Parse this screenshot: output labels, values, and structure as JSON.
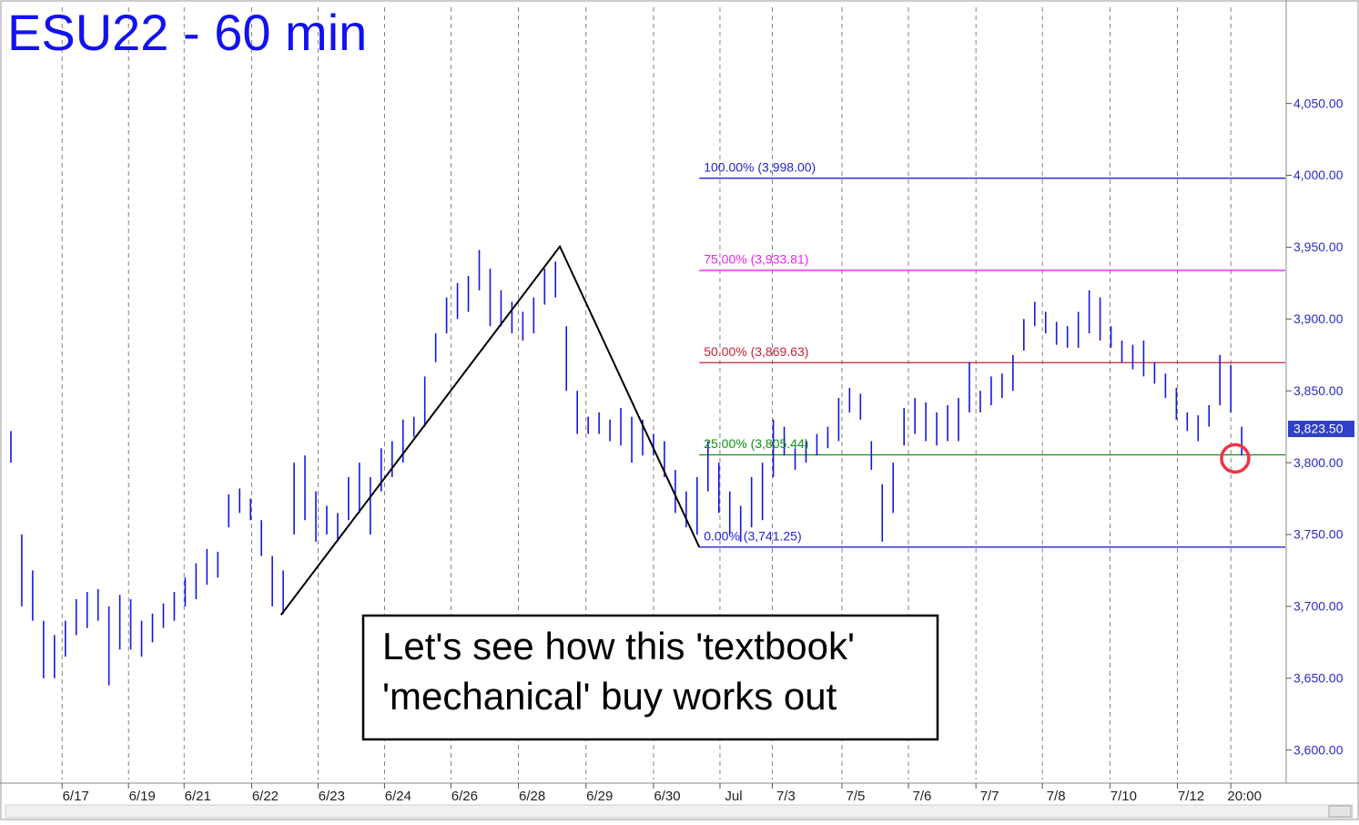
{
  "chart_data": {
    "type": "range-bar",
    "title": "ESU22 - 60 min",
    "color": "#1515e6",
    "high": [
      3822,
      3750,
      3725,
      3690,
      3680,
      3690,
      3705,
      3710,
      3712,
      3700,
      3708,
      3705,
      3690,
      3695,
      3702,
      3710,
      3720,
      3730,
      3740,
      3738,
      3778,
      3782,
      3775,
      3760,
      3735,
      3725,
      3800,
      3805,
      3780,
      3770,
      3765,
      3790,
      3800,
      3790,
      3810,
      3815,
      3830,
      3832,
      3860,
      3890,
      3915,
      3925,
      3930,
      3948,
      3935,
      3920,
      3912,
      3905,
      3915,
      3935,
      3940,
      3895,
      3850,
      3832,
      3835,
      3830,
      3838,
      3832,
      3830,
      3820,
      3815,
      3795,
      3780,
      3790,
      3815,
      3800,
      3780,
      3770,
      3790,
      3800,
      3830,
      3825,
      3810,
      3815,
      3820,
      3825,
      3845,
      3852,
      3848,
      3815,
      3785,
      3800,
      3838,
      3845,
      3842,
      3835,
      3840,
      3845,
      3870,
      3850,
      3860,
      3862,
      3875,
      3900,
      3912,
      3905,
      3898,
      3895,
      3905,
      3920,
      3915,
      3895,
      3885,
      3882,
      3885,
      3870,
      3862,
      3852,
      3835,
      3833,
      3840,
      3875,
      3868,
      3825
    ],
    "low": [
      3800,
      3700,
      3690,
      3650,
      3650,
      3665,
      3680,
      3685,
      3690,
      3645,
      3670,
      3670,
      3665,
      3675,
      3685,
      3690,
      3700,
      3705,
      3715,
      3720,
      3755,
      3765,
      3760,
      3735,
      3700,
      3695,
      3750,
      3760,
      3745,
      3750,
      3745,
      3760,
      3765,
      3750,
      3780,
      3790,
      3800,
      3818,
      3825,
      3870,
      3890,
      3900,
      3905,
      3920,
      3895,
      3895,
      3890,
      3885,
      3890,
      3910,
      3915,
      3850,
      3820,
      3820,
      3820,
      3815,
      3812,
      3800,
      3805,
      3805,
      3790,
      3765,
      3755,
      3750,
      3780,
      3765,
      3750,
      3745,
      3755,
      3760,
      3790,
      3805,
      3795,
      3800,
      3805,
      3810,
      3815,
      3835,
      3830,
      3795,
      3745,
      3765,
      3812,
      3820,
      3815,
      3812,
      3815,
      3815,
      3835,
      3835,
      3840,
      3845,
      3850,
      3878,
      3895,
      3890,
      3882,
      3880,
      3880,
      3890,
      3885,
      3880,
      3870,
      3865,
      3860,
      3855,
      3845,
      3830,
      3822,
      3815,
      3825,
      3840,
      3835,
      3805
    ],
    "xlim": [
      0,
      118
    ],
    "ylim": [
      3577,
      4122
    ],
    "xticks": [
      {
        "value": 5.7,
        "label": "6/17"
      },
      {
        "value": 11.8,
        "label": "6/19"
      },
      {
        "value": 16.9,
        "label": "6/21"
      },
      {
        "value": 23.1,
        "label": "6/22"
      },
      {
        "value": 29.2,
        "label": "6/23"
      },
      {
        "value": 35.3,
        "label": "6/24"
      },
      {
        "value": 41.4,
        "label": "6/26"
      },
      {
        "value": 47.6,
        "label": "6/28"
      },
      {
        "value": 53.8,
        "label": "6/29"
      },
      {
        "value": 60,
        "label": "6/30"
      },
      {
        "value": 66.1,
        "label": "Jul"
      },
      {
        "value": 70.9,
        "label": "7/3"
      },
      {
        "value": 77.3,
        "label": "7/5"
      },
      {
        "value": 83.4,
        "label": "7/6"
      },
      {
        "value": 89.6,
        "label": "7/7"
      },
      {
        "value": 95.7,
        "label": "7/8"
      },
      {
        "value": 101.9,
        "label": "7/10"
      },
      {
        "value": 108.1,
        "label": "7/12"
      },
      {
        "value": 113,
        "label": "20:00"
      }
    ],
    "yticks": [
      {
        "value": 3600,
        "label": "3,600.00"
      },
      {
        "value": 3650,
        "label": "3,650.00"
      },
      {
        "value": 3700,
        "label": "3,700.00"
      },
      {
        "value": 3750,
        "label": "3,750.00"
      },
      {
        "value": 3800,
        "label": "3,800.00"
      },
      {
        "value": 3850,
        "label": "3,850.00"
      },
      {
        "value": 3900,
        "label": "3,900.00"
      },
      {
        "value": 3950,
        "label": "3,950.00"
      },
      {
        "value": 4000,
        "label": "4,000.00"
      },
      {
        "value": 4050,
        "label": "4,050.00"
      }
    ],
    "last_price": {
      "value": 3823.5,
      "label": "3,823.50"
    },
    "fib_start": 64.2,
    "fib_levels": [
      {
        "label": "100.00% (3,998.00)",
        "value": 3998,
        "color": "#2323d8"
      },
      {
        "label": "75.00% (3,933.81)",
        "value": 3933.81,
        "color": "#ee22ee"
      },
      {
        "label": "50.00% (3,869.63)",
        "value": 3869.63,
        "color": "#c8203c"
      },
      {
        "label": "25.00% (3,805.44)",
        "value": 3805.44,
        "color": "#119011"
      },
      {
        "label": "0.00% (3,741.25)",
        "value": 3741.25,
        "color": "#2323d8"
      }
    ],
    "trendline": {
      "x": [
        25.8,
        51.4,
        64.2
      ],
      "y": [
        3694,
        3950.5,
        3741.25
      ]
    },
    "marker": {
      "x": 113.4,
      "y": 3803
    },
    "annotation": [
      "Let's see how this 'textbook'",
      "'mechanical' buy works out"
    ]
  }
}
